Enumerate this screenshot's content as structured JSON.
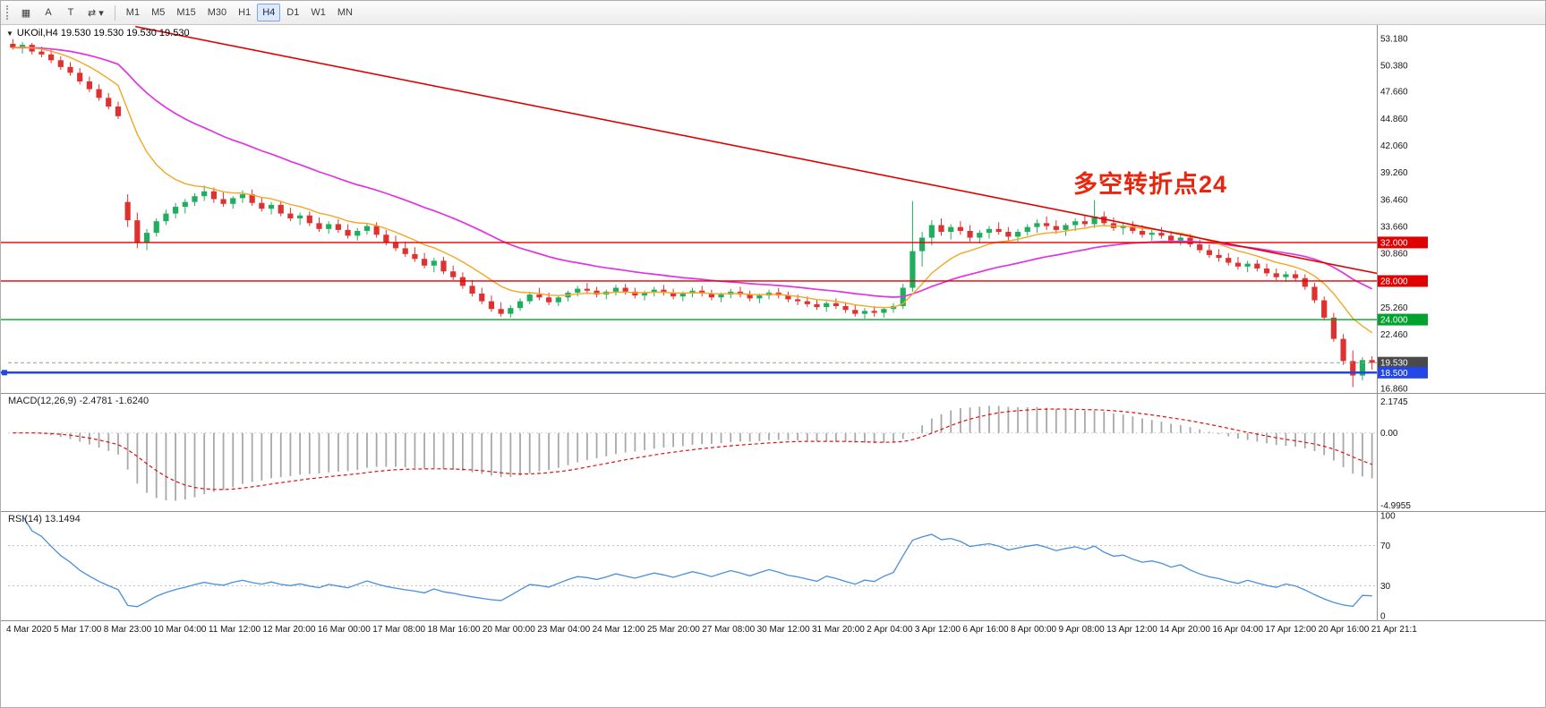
{
  "toolbar": {
    "tools": [
      {
        "name": "tick-grid",
        "glyph": "▦"
      },
      {
        "name": "text-annotation",
        "glyph": "A"
      },
      {
        "name": "text-label",
        "glyph": "T"
      },
      {
        "name": "cycle-symbols",
        "glyph": "⇄",
        "caret": "▾"
      }
    ],
    "timeframes": [
      "M1",
      "M5",
      "M15",
      "M30",
      "H1",
      "H4",
      "D1",
      "W1",
      "MN"
    ],
    "active_timeframe": "H4"
  },
  "chart": {
    "symbol_marker": "▼",
    "title": "UKOil,H4 19.530 19.530 19.530 19.530",
    "annotation": {
      "text": "多空转折点24",
      "color": "#e8260e"
    },
    "price_axis": [
      "53.180",
      "50.380",
      "47.660",
      "44.860",
      "42.060",
      "39.260",
      "36.460",
      "33.660",
      "30.860",
      "25.260",
      "22.460",
      "16.860"
    ]
  },
  "indicators": {
    "macd": {
      "label": "MACD(12,26,9) -2.4781 -1.6240",
      "axis": [
        "2.1745",
        "0.00",
        "-4.9955"
      ],
      "axis_values": [
        2.1745,
        0,
        -4.9955
      ]
    },
    "rsi": {
      "label": "RSI(14) 13.1494",
      "axis": [
        "100",
        "70",
        "30",
        "0"
      ],
      "axis_values": [
        100,
        70,
        30,
        0
      ],
      "levels": [
        70,
        30
      ]
    }
  },
  "time_axis": [
    "4 Mar 2020",
    "5 Mar 17:00",
    "8 Mar 23:00",
    "10 Mar 04:00",
    "11 Mar 12:00",
    "12 Mar 20:00",
    "16 Mar 00:00",
    "17 Mar 08:00",
    "18 Mar 16:00",
    "20 Mar 00:00",
    "23 Mar 04:00",
    "24 Mar 12:00",
    "25 Mar 20:00",
    "27 Mar 08:00",
    "30 Mar 12:00",
    "31 Mar 20:00",
    "2 Apr 04:00",
    "3 Apr 12:00",
    "6 Apr 16:00",
    "8 Apr 00:00",
    "9 Apr 08:00",
    "13 Apr 12:00",
    "14 Apr 20:00",
    "16 Apr 04:00",
    "17 Apr 12:00",
    "20 Apr 16:00",
    "21 Apr 21:1"
  ],
  "chart_data": {
    "type": "candlestick",
    "symbol": "UKOil",
    "timeframe": "H4",
    "title": "UKOil,H4",
    "price_max": 54.55,
    "price_min": 16.3,
    "ma_fast_period": 10,
    "ma_slow_period": 32,
    "colors": {
      "up": "#1fae5e",
      "down": "#e03131",
      "ma_fast": "#f5a623",
      "ma_slow": "#e233e2",
      "trend": "#e00000",
      "macd_hist": "#a8a8a8",
      "macd_signal": "#e01010",
      "rsi": "#4a90d9"
    },
    "trendline": {
      "x1_frac": 0.093,
      "price1": 54.4,
      "x2_frac": 1.0,
      "price2": 28.8
    },
    "levels": [
      {
        "price": 32.0,
        "label": "32.000",
        "color": "#e00000",
        "badge": "#e00000",
        "width": 1.4
      },
      {
        "price": 28.0,
        "label": "28.000",
        "color": "#e00000",
        "badge": "#e00000",
        "width": 1.4
      },
      {
        "price": 24.0,
        "label": "24.000",
        "color": "#00a32e",
        "badge": "#00a32e",
        "width": 1.4
      },
      {
        "price": 18.5,
        "label": "18.500",
        "color": "#2247e6",
        "badge": "#2247e6",
        "width": 2.5,
        "anchor": true
      }
    ],
    "current_price": {
      "price": 19.53,
      "label": "19.530",
      "badge": "#4a4a4a"
    },
    "macd_range": {
      "max": 2.7,
      "min": -5.45
    },
    "candles": [
      [
        52.6,
        53.1,
        52.0,
        52.2
      ],
      [
        52.2,
        52.8,
        51.6,
        52.5
      ],
      [
        52.5,
        52.7,
        51.5,
        51.8
      ],
      [
        51.8,
        52.3,
        51.2,
        51.5
      ],
      [
        51.5,
        52.0,
        50.6,
        50.9
      ],
      [
        50.9,
        51.3,
        49.9,
        50.2
      ],
      [
        50.2,
        50.7,
        49.3,
        49.6
      ],
      [
        49.6,
        50.1,
        48.4,
        48.7
      ],
      [
        48.7,
        49.2,
        47.6,
        47.9
      ],
      [
        47.9,
        48.4,
        46.7,
        47.0
      ],
      [
        47.0,
        47.5,
        45.8,
        46.1
      ],
      [
        46.1,
        46.6,
        44.8,
        45.1
      ],
      [
        36.2,
        37.0,
        33.6,
        34.3
      ],
      [
        34.3,
        35.1,
        31.4,
        32.0
      ],
      [
        32.0,
        33.4,
        31.2,
        33.0
      ],
      [
        33.0,
        34.5,
        32.6,
        34.2
      ],
      [
        34.2,
        35.4,
        33.8,
        35.0
      ],
      [
        35.0,
        36.1,
        34.5,
        35.7
      ],
      [
        35.7,
        36.5,
        35.0,
        36.2
      ],
      [
        36.2,
        37.1,
        35.8,
        36.8
      ],
      [
        36.8,
        37.9,
        36.3,
        37.3
      ],
      [
        37.3,
        37.7,
        36.1,
        36.5
      ],
      [
        36.5,
        37.2,
        35.7,
        36.0
      ],
      [
        36.0,
        36.8,
        35.5,
        36.6
      ],
      [
        36.6,
        37.4,
        36.1,
        37.0
      ],
      [
        37.0,
        37.5,
        35.8,
        36.1
      ],
      [
        36.1,
        36.7,
        35.2,
        35.5
      ],
      [
        35.5,
        36.2,
        34.9,
        35.9
      ],
      [
        35.9,
        36.3,
        34.7,
        35.0
      ],
      [
        35.0,
        35.6,
        34.2,
        34.5
      ],
      [
        34.5,
        35.1,
        33.8,
        34.8
      ],
      [
        34.8,
        35.2,
        33.7,
        34.0
      ],
      [
        34.0,
        34.6,
        33.1,
        33.4
      ],
      [
        33.4,
        34.2,
        32.9,
        33.9
      ],
      [
        33.9,
        34.4,
        33.0,
        33.3
      ],
      [
        33.3,
        33.9,
        32.4,
        32.7
      ],
      [
        32.7,
        33.5,
        32.2,
        33.2
      ],
      [
        33.2,
        34.0,
        32.8,
        33.7
      ],
      [
        33.7,
        34.1,
        32.5,
        32.8
      ],
      [
        32.8,
        33.3,
        31.7,
        32.0
      ],
      [
        32.0,
        32.7,
        31.1,
        31.4
      ],
      [
        31.4,
        32.1,
        30.5,
        30.8
      ],
      [
        30.8,
        31.5,
        30.0,
        30.3
      ],
      [
        30.3,
        30.9,
        29.3,
        29.6
      ],
      [
        29.6,
        30.4,
        28.9,
        30.1
      ],
      [
        30.1,
        30.5,
        28.7,
        29.0
      ],
      [
        29.0,
        29.6,
        28.1,
        28.4
      ],
      [
        28.4,
        28.9,
        27.2,
        27.5
      ],
      [
        27.5,
        28.1,
        26.4,
        26.7
      ],
      [
        26.7,
        27.3,
        25.6,
        25.9
      ],
      [
        25.9,
        26.5,
        24.8,
        25.1
      ],
      [
        25.1,
        25.8,
        24.3,
        24.6
      ],
      [
        24.6,
        25.5,
        24.2,
        25.2
      ],
      [
        25.2,
        26.2,
        24.9,
        25.9
      ],
      [
        25.9,
        26.9,
        25.6,
        26.6
      ],
      [
        26.6,
        27.3,
        26.0,
        26.3
      ],
      [
        26.3,
        26.8,
        25.5,
        25.8
      ],
      [
        25.8,
        26.5,
        25.4,
        26.3
      ],
      [
        26.3,
        27.0,
        25.9,
        26.8
      ],
      [
        26.8,
        27.5,
        26.4,
        27.2
      ],
      [
        27.2,
        27.8,
        26.7,
        27.0
      ],
      [
        27.0,
        27.4,
        26.3,
        26.6
      ],
      [
        26.6,
        27.1,
        26.1,
        26.9
      ],
      [
        26.9,
        27.6,
        26.5,
        27.3
      ],
      [
        27.3,
        27.7,
        26.6,
        26.9
      ],
      [
        26.9,
        27.3,
        26.2,
        26.5
      ],
      [
        26.5,
        27.0,
        26.0,
        26.8
      ],
      [
        26.8,
        27.4,
        26.4,
        27.1
      ],
      [
        27.1,
        27.6,
        26.5,
        26.8
      ],
      [
        26.8,
        27.2,
        26.1,
        26.4
      ],
      [
        26.4,
        26.9,
        25.9,
        26.7
      ],
      [
        26.7,
        27.3,
        26.3,
        27.0
      ],
      [
        27.0,
        27.5,
        26.4,
        26.7
      ],
      [
        26.7,
        27.1,
        26.0,
        26.3
      ],
      [
        26.3,
        26.8,
        25.8,
        26.6
      ],
      [
        26.6,
        27.2,
        26.2,
        26.9
      ],
      [
        26.9,
        27.4,
        26.3,
        26.6
      ],
      [
        26.6,
        27.0,
        25.9,
        26.2
      ],
      [
        26.2,
        26.7,
        25.7,
        26.5
      ],
      [
        26.5,
        27.1,
        26.1,
        26.8
      ],
      [
        26.8,
        27.3,
        26.2,
        26.5
      ],
      [
        26.5,
        26.9,
        25.8,
        26.1
      ],
      [
        26.1,
        26.6,
        25.5,
        25.9
      ],
      [
        25.9,
        26.4,
        25.3,
        25.6
      ],
      [
        25.6,
        26.1,
        25.0,
        25.3
      ],
      [
        25.3,
        25.9,
        24.8,
        25.7
      ],
      [
        25.7,
        26.2,
        25.1,
        25.4
      ],
      [
        25.4,
        25.8,
        24.7,
        25.0
      ],
      [
        25.0,
        25.5,
        24.3,
        24.6
      ],
      [
        24.6,
        25.2,
        24.1,
        24.9
      ],
      [
        24.9,
        25.4,
        24.3,
        24.7
      ],
      [
        24.7,
        25.3,
        24.2,
        25.1
      ],
      [
        25.1,
        25.7,
        24.7,
        25.4
      ],
      [
        25.4,
        27.7,
        25.1,
        27.3
      ],
      [
        27.3,
        36.3,
        26.9,
        31.1
      ],
      [
        31.1,
        33.1,
        29.5,
        32.5
      ],
      [
        32.5,
        34.3,
        31.7,
        33.8
      ],
      [
        33.8,
        34.5,
        32.7,
        33.1
      ],
      [
        33.1,
        33.9,
        32.3,
        33.6
      ],
      [
        33.6,
        34.2,
        32.8,
        33.2
      ],
      [
        33.2,
        33.8,
        32.1,
        32.5
      ],
      [
        32.5,
        33.3,
        31.9,
        33.0
      ],
      [
        33.0,
        33.7,
        32.4,
        33.4
      ],
      [
        33.4,
        34.1,
        32.8,
        33.1
      ],
      [
        33.1,
        33.6,
        32.2,
        32.6
      ],
      [
        32.6,
        33.4,
        32.1,
        33.1
      ],
      [
        33.1,
        33.9,
        32.7,
        33.6
      ],
      [
        33.6,
        34.4,
        33.0,
        34.0
      ],
      [
        34.0,
        34.7,
        33.3,
        33.7
      ],
      [
        33.7,
        34.3,
        32.9,
        33.3
      ],
      [
        33.3,
        34.0,
        32.7,
        33.8
      ],
      [
        33.8,
        34.5,
        33.2,
        34.2
      ],
      [
        34.2,
        34.9,
        33.6,
        33.9
      ],
      [
        33.9,
        36.4,
        33.5,
        34.7
      ],
      [
        34.7,
        35.2,
        33.7,
        34.0
      ],
      [
        34.0,
        34.6,
        33.2,
        33.5
      ],
      [
        33.5,
        34.1,
        32.8,
        33.7
      ],
      [
        33.7,
        34.2,
        32.9,
        33.2
      ],
      [
        33.2,
        33.8,
        32.5,
        32.8
      ],
      [
        32.8,
        33.4,
        32.2,
        33.0
      ],
      [
        33.0,
        33.6,
        32.4,
        32.7
      ],
      [
        32.7,
        33.2,
        31.9,
        32.2
      ],
      [
        32.2,
        32.8,
        31.7,
        32.5
      ],
      [
        32.5,
        32.9,
        31.5,
        31.8
      ],
      [
        31.8,
        32.3,
        30.9,
        31.2
      ],
      [
        31.2,
        31.8,
        30.4,
        30.7
      ],
      [
        30.7,
        31.3,
        30.0,
        30.4
      ],
      [
        30.4,
        30.9,
        29.6,
        29.9
      ],
      [
        29.9,
        30.5,
        29.2,
        29.5
      ],
      [
        29.5,
        30.1,
        28.9,
        29.8
      ],
      [
        29.8,
        30.2,
        29.0,
        29.3
      ],
      [
        29.3,
        29.8,
        28.5,
        28.8
      ],
      [
        28.8,
        29.3,
        28.1,
        28.4
      ],
      [
        28.4,
        29.0,
        27.9,
        28.7
      ],
      [
        28.7,
        29.1,
        28.0,
        28.3
      ],
      [
        28.3,
        28.7,
        27.1,
        27.4
      ],
      [
        27.4,
        27.8,
        25.7,
        26.0
      ],
      [
        26.0,
        26.4,
        23.9,
        24.2
      ],
      [
        24.2,
        24.7,
        21.7,
        22.0
      ],
      [
        22.0,
        22.5,
        19.3,
        19.7
      ],
      [
        19.7,
        20.8,
        17.0,
        18.2
      ],
      [
        18.2,
        20.1,
        17.7,
        19.8
      ],
      [
        19.8,
        20.2,
        18.8,
        19.53
      ]
    ]
  }
}
